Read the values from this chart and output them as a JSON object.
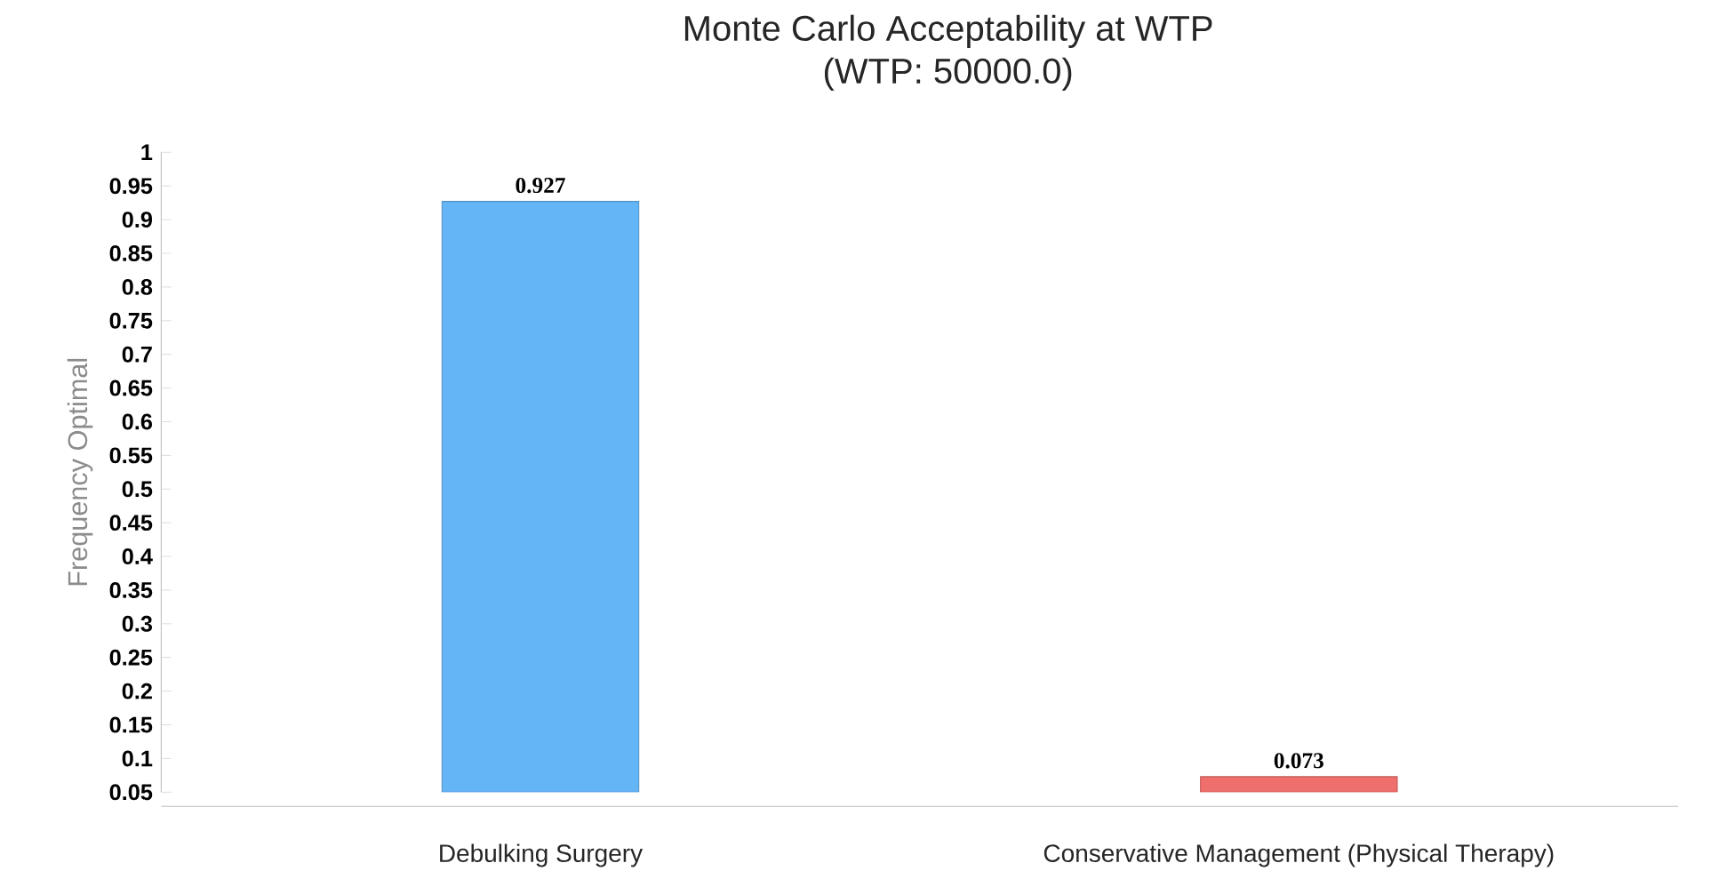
{
  "chart_data": {
    "type": "bar",
    "title": "Monte Carlo Acceptability at WTP",
    "subtitle": "(WTP: 50000.0)",
    "ylabel": "Frequency Optimal",
    "categories": [
      "Debulking Surgery",
      "Conservative Management (Physical Therapy)"
    ],
    "values": [
      0.927,
      0.073
    ],
    "colors": [
      "#64b5f6",
      "#ef6f6c"
    ],
    "ylim": [
      0.05,
      1
    ],
    "yticks": [
      0.05,
      0.1,
      0.15,
      0.2,
      0.25,
      0.3,
      0.35,
      0.4,
      0.45,
      0.5,
      0.55,
      0.6,
      0.65,
      0.7,
      0.75,
      0.8,
      0.85,
      0.9,
      0.95,
      1
    ],
    "data_labels": true
  }
}
